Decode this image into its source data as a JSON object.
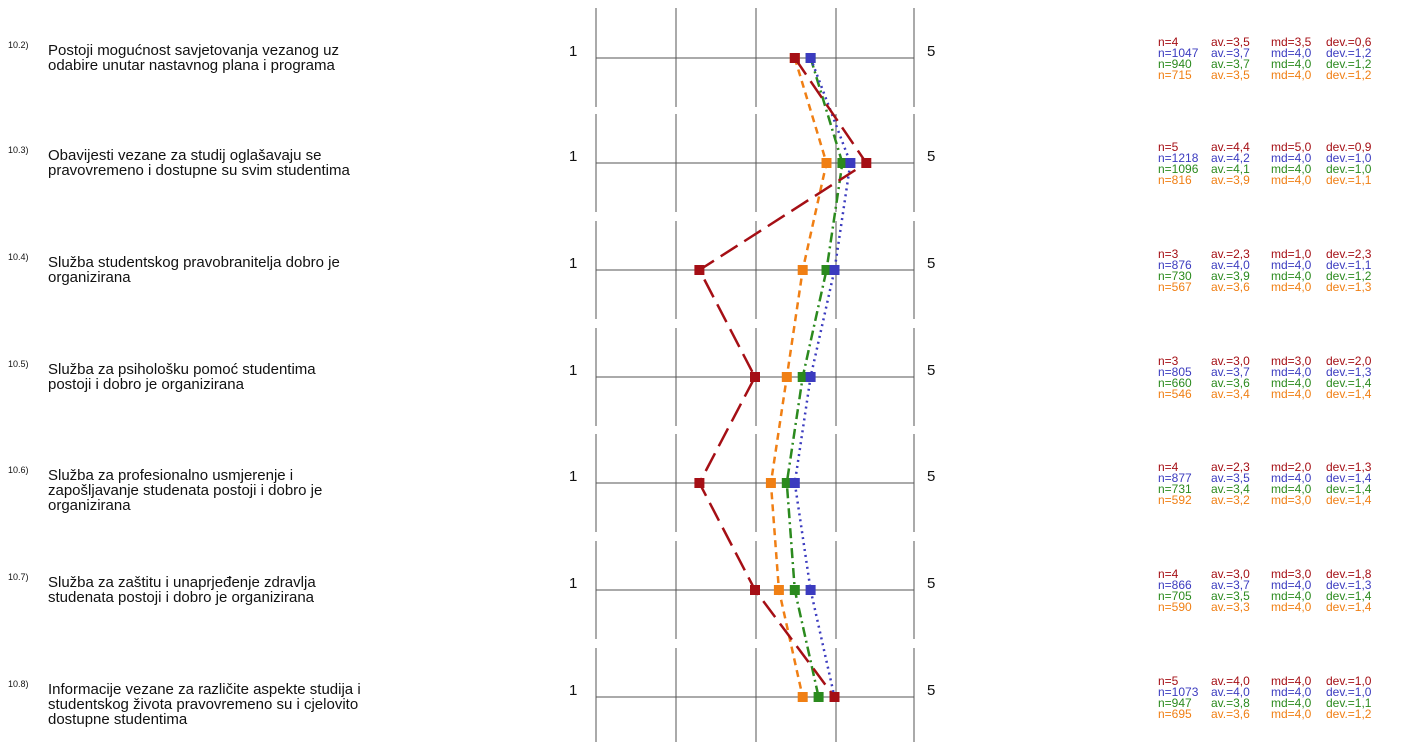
{
  "colors": {
    "series": [
      "#a50f15",
      "#3b3bbf",
      "#2b8a1e",
      "#f07f14"
    ],
    "axis": "#555555",
    "text": "#111111"
  },
  "scale": {
    "min_label": "1",
    "max_label": "5"
  },
  "items": [
    {
      "num": "10.2)",
      "lines": [
        "Postoji mogućnost savjetovanja vezanog uz",
        "odabire unutar nastavnog plana i programa"
      ],
      "stats": [
        {
          "n": "n=4",
          "av": "av.=3,5",
          "md": "md=3,5",
          "dev": "dev.=0,6"
        },
        {
          "n": "n=1047",
          "av": "av.=3,7",
          "md": "md=4,0",
          "dev": "dev.=1,2"
        },
        {
          "n": "n=940",
          "av": "av.=3,7",
          "md": "md=4,0",
          "dev": "dev.=1,2"
        },
        {
          "n": "n=715",
          "av": "av.=3,5",
          "md": "md=4,0",
          "dev": "dev.=1,2"
        }
      ]
    },
    {
      "num": "10.3)",
      "lines": [
        "Obavijesti vezane za studij oglašavaju se",
        "pravovremeno i dostupne su svim studentima"
      ],
      "stats": [
        {
          "n": "n=5",
          "av": "av.=4,4",
          "md": "md=5,0",
          "dev": "dev.=0,9"
        },
        {
          "n": "n=1218",
          "av": "av.=4,2",
          "md": "md=4,0",
          "dev": "dev.=1,0"
        },
        {
          "n": "n=1096",
          "av": "av.=4,1",
          "md": "md=4,0",
          "dev": "dev.=1,0"
        },
        {
          "n": "n=816",
          "av": "av.=3,9",
          "md": "md=4,0",
          "dev": "dev.=1,1"
        }
      ]
    },
    {
      "num": "10.4)",
      "lines": [
        "Služba studentskog pravobranitelja dobro je",
        "organizirana"
      ],
      "stats": [
        {
          "n": "n=3",
          "av": "av.=2,3",
          "md": "md=1,0",
          "dev": "dev.=2,3"
        },
        {
          "n": "n=876",
          "av": "av.=4,0",
          "md": "md=4,0",
          "dev": "dev.=1,1"
        },
        {
          "n": "n=730",
          "av": "av.=3,9",
          "md": "md=4,0",
          "dev": "dev.=1,2"
        },
        {
          "n": "n=567",
          "av": "av.=3,6",
          "md": "md=4,0",
          "dev": "dev.=1,3"
        }
      ]
    },
    {
      "num": "10.5)",
      "lines": [
        "Služba za psihološku pomoć studentima",
        "postoji i dobro je organizirana"
      ],
      "stats": [
        {
          "n": "n=3",
          "av": "av.=3,0",
          "md": "md=3,0",
          "dev": "dev.=2,0"
        },
        {
          "n": "n=805",
          "av": "av.=3,7",
          "md": "md=4,0",
          "dev": "dev.=1,3"
        },
        {
          "n": "n=660",
          "av": "av.=3,6",
          "md": "md=4,0",
          "dev": "dev.=1,4"
        },
        {
          "n": "n=546",
          "av": "av.=3,4",
          "md": "md=4,0",
          "dev": "dev.=1,4"
        }
      ]
    },
    {
      "num": "10.6)",
      "lines": [
        "Služba za profesionalno usmjerenje i",
        "zapošljavanje studenata postoji i dobro je",
        "organizirana"
      ],
      "stats": [
        {
          "n": "n=4",
          "av": "av.=2,3",
          "md": "md=2,0",
          "dev": "dev.=1,3"
        },
        {
          "n": "n=877",
          "av": "av.=3,5",
          "md": "md=4,0",
          "dev": "dev.=1,4"
        },
        {
          "n": "n=731",
          "av": "av.=3,4",
          "md": "md=4,0",
          "dev": "dev.=1,4"
        },
        {
          "n": "n=592",
          "av": "av.=3,2",
          "md": "md=3,0",
          "dev": "dev.=1,4"
        }
      ]
    },
    {
      "num": "10.7)",
      "lines": [
        "Služba za zaštitu i unaprjeđenje zdravlja",
        "studenata postoji i dobro je organizirana"
      ],
      "stats": [
        {
          "n": "n=4",
          "av": "av.=3,0",
          "md": "md=3,0",
          "dev": "dev.=1,8"
        },
        {
          "n": "n=866",
          "av": "av.=3,7",
          "md": "md=4,0",
          "dev": "dev.=1,3"
        },
        {
          "n": "n=705",
          "av": "av.=3,5",
          "md": "md=4,0",
          "dev": "dev.=1,4"
        },
        {
          "n": "n=590",
          "av": "av.=3,3",
          "md": "md=4,0",
          "dev": "dev.=1,4"
        }
      ]
    },
    {
      "num": "10.8)",
      "lines": [
        "Informacije vezane za različite aspekte studija i",
        "studentskog života pravovremeno su i cjelovito",
        "dostupne studentima"
      ],
      "stats": [
        {
          "n": "n=5",
          "av": "av.=4,0",
          "md": "md=4,0",
          "dev": "dev.=1,0"
        },
        {
          "n": "n=1073",
          "av": "av.=4,0",
          "md": "md=4,0",
          "dev": "dev.=1,0"
        },
        {
          "n": "n=947",
          "av": "av.=3,8",
          "md": "md=4,0",
          "dev": "dev.=1,1"
        },
        {
          "n": "n=695",
          "av": "av.=3,6",
          "md": "md=4,0",
          "dev": "dev.=1,2"
        }
      ]
    }
  ],
  "chart_data": {
    "type": "line",
    "orientation": "horizontal-profile",
    "xlim": [
      1,
      5
    ],
    "categories": [
      "10.2)",
      "10.3)",
      "10.4)",
      "10.5)",
      "10.6)",
      "10.7)",
      "10.8)"
    ],
    "series": [
      {
        "values": [
          3.5,
          4.4,
          2.3,
          3.0,
          2.3,
          3.0,
          4.0
        ],
        "color": "#a50f15",
        "style": "long-dash"
      },
      {
        "values": [
          3.7,
          4.2,
          4.0,
          3.7,
          3.5,
          3.7,
          4.0
        ],
        "color": "#3b3bbf",
        "style": "dotted"
      },
      {
        "values": [
          3.7,
          4.1,
          3.9,
          3.6,
          3.4,
          3.5,
          3.8
        ],
        "color": "#2b8a1e",
        "style": "dash-dot"
      },
      {
        "values": [
          3.5,
          3.9,
          3.6,
          3.4,
          3.2,
          3.3,
          3.6
        ],
        "color": "#f07f14",
        "style": "dashed"
      }
    ]
  }
}
